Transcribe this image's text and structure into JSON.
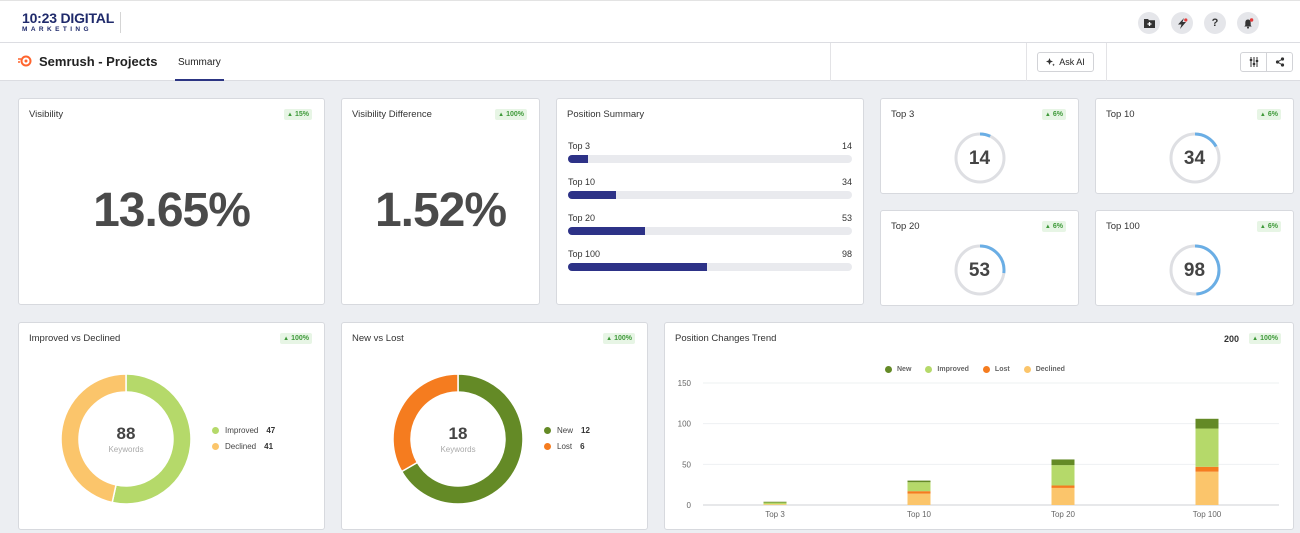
{
  "app": {
    "logo_main": "10:23 DIGITAL",
    "logo_sub": "MARKETING"
  },
  "header": {
    "title": "Semrush - Projects",
    "tab": "Summary",
    "ask_ai": "Ask AI",
    "help": "?"
  },
  "visibility": {
    "title": "Visibility",
    "value": "13.65%",
    "badge": "15%"
  },
  "visibility_diff": {
    "title": "Visibility Difference",
    "value": "1.52%",
    "badge": "100%"
  },
  "position_summary": {
    "title": "Position Summary",
    "rows": [
      {
        "label": "Top 3",
        "value": "14",
        "fraction": 0.071
      },
      {
        "label": "Top 10",
        "value": "34",
        "fraction": 0.17
      },
      {
        "label": "Top 20",
        "value": "53",
        "fraction": 0.27
      },
      {
        "label": "Top 100",
        "value": "98",
        "fraction": 0.49
      }
    ]
  },
  "top_cards": [
    {
      "title": "Top 3",
      "value": "14",
      "badge": "6%",
      "fraction": 0.07
    },
    {
      "title": "Top 10",
      "value": "34",
      "badge": "6%",
      "fraction": 0.17
    },
    {
      "title": "Top 20",
      "value": "53",
      "badge": "6%",
      "fraction": 0.27
    },
    {
      "title": "Top 100",
      "value": "98",
      "badge": "6%",
      "fraction": 0.49
    }
  ],
  "improved_declined": {
    "title": "Improved vs Declined",
    "badge": "100%",
    "total": "88",
    "unit": "Keywords",
    "items": [
      {
        "label": "Improved",
        "value": "47",
        "color": "#b5d96a"
      },
      {
        "label": "Declined",
        "value": "41",
        "color": "#fbc56b"
      }
    ]
  },
  "new_lost": {
    "title": "New vs Lost",
    "badge": "100%",
    "total": "18",
    "unit": "Keywords",
    "items": [
      {
        "label": "New",
        "value": "12",
        "color": "#648a26"
      },
      {
        "label": "Lost",
        "value": "6",
        "color": "#f57c1f"
      }
    ]
  },
  "trend": {
    "title": "Position Changes Trend",
    "total": "200",
    "badge": "100%"
  },
  "chart_data": {
    "type": "bar",
    "stacked": true,
    "categories": [
      "Top 3",
      "Top 10",
      "Top 20",
      "Top 100"
    ],
    "series": [
      {
        "name": "New",
        "color": "#648a26",
        "values": [
          1,
          2,
          7,
          12
        ]
      },
      {
        "name": "Improved",
        "color": "#b5d96a",
        "values": [
          2,
          11,
          25,
          47
        ]
      },
      {
        "name": "Lost",
        "color": "#f57c1f",
        "values": [
          0,
          3,
          3,
          6
        ]
      },
      {
        "name": "Declined",
        "color": "#fbc56b",
        "values": [
          1,
          14,
          21,
          41
        ]
      }
    ],
    "ylim": [
      0,
      150
    ],
    "yticks": [
      "150",
      "100",
      "50",
      "0"
    ],
    "legend": "top-center"
  }
}
